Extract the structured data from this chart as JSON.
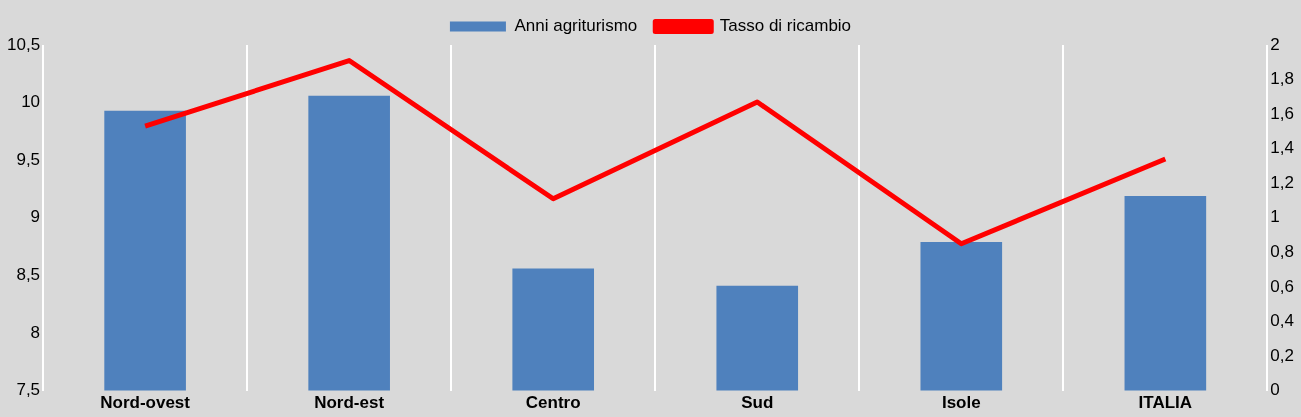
{
  "chart_data": {
    "type": "bar",
    "categories": [
      "Nord-ovest",
      "Nord-est",
      "Centro",
      "Sud",
      "Isole",
      "ITALIA"
    ],
    "series": [
      {
        "name": "Anni agriturismo",
        "color": "#4f81bd",
        "values": [
          9.93,
          10.06,
          8.56,
          8.41,
          8.79,
          9.19
        ]
      },
      {
        "name": "Tasso di ricambio",
        "type": "line",
        "axis": "y2",
        "color": "#ff0000",
        "values": [
          1.53,
          1.91,
          1.11,
          1.67,
          0.85,
          1.34
        ]
      }
    ],
    "ylim": [
      7.5,
      10.5
    ],
    "yticks": [
      {
        "value": 7.5,
        "label": "7,5"
      },
      8,
      {
        "value": 8.5,
        "label": "8,5"
      },
      9,
      {
        "value": 9.5,
        "label": "9,5"
      },
      10,
      {
        "value": 10.5,
        "label": "10,5"
      }
    ],
    "y2lim": [
      0,
      2
    ],
    "y2ticks": [
      0,
      {
        "value": 0.2,
        "label": "0,2"
      },
      {
        "value": 0.4,
        "label": "0,4"
      },
      {
        "value": 0.6,
        "label": "0,6"
      },
      {
        "value": 0.8,
        "label": "0,8"
      },
      1,
      {
        "value": 1.2,
        "label": "1,2"
      },
      {
        "value": 1.4,
        "label": "1,4"
      },
      {
        "value": 1.6,
        "label": "1,6"
      },
      {
        "value": 1.8,
        "label": "1,8"
      },
      2
    ],
    "grid": "x",
    "legend": "top",
    "marker": "none",
    "line_style": "solid"
  }
}
